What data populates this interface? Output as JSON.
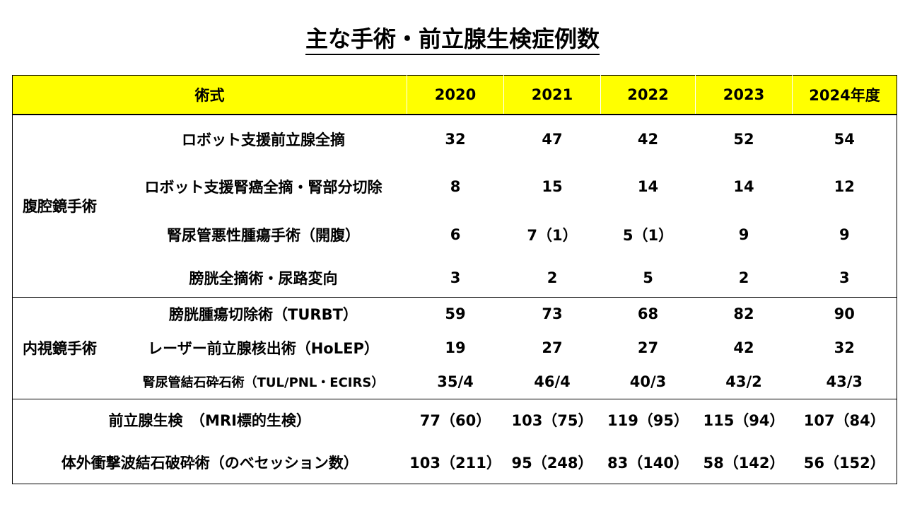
{
  "title": "主な手術・前立腺生検症例数",
  "headers": [
    "術式",
    "2020",
    "2021",
    "2022",
    "2023",
    "2024年度"
  ],
  "groups": {
    "laparo": "腹腔鏡手術",
    "endo": "内視鏡手術"
  },
  "rows": {
    "r1": {
      "label": "ロボット支援前立腺全摘",
      "values": [
        "32",
        "47",
        "42",
        "52",
        "54"
      ]
    },
    "r2": {
      "label": "ロボット支援腎癌全摘・腎部分切除",
      "values": [
        "8",
        "15",
        "14",
        "14",
        "12"
      ]
    },
    "r3": {
      "label": "腎尿管悪性腫瘍手術（開腹）",
      "values": [
        "6",
        "7（1）",
        "5（1）",
        "9",
        "9"
      ]
    },
    "r4": {
      "label": "膀胱全摘術・尿路変向",
      "values": [
        "3",
        "2",
        "5",
        "2",
        "3"
      ]
    },
    "r5": {
      "label": "膀胱腫瘍切除術（TURBT）",
      "values": [
        "59",
        "73",
        "68",
        "82",
        "90"
      ]
    },
    "r6": {
      "label": "レーザー前立腺核出術（HoLEP）",
      "values": [
        "19",
        "27",
        "27",
        "42",
        "32"
      ]
    },
    "r7": {
      "label": "腎尿管結石砕石術（TUL/PNL・ECIRS）",
      "values": [
        "35/4",
        "46/4",
        "40/3",
        "43/2",
        "43/3"
      ]
    },
    "r8": {
      "label": "前立腺生検　（MRI標的生検）",
      "values": [
        "77（60）",
        "103（75）",
        "119（95）",
        "115（94）",
        "107（84）"
      ]
    },
    "r9": {
      "label": "体外衝撃波結石破砕術（のべセッション数）",
      "values": [
        "103（211）",
        "95（248）",
        "83（140）",
        "58（142）",
        "56（152）"
      ]
    }
  }
}
